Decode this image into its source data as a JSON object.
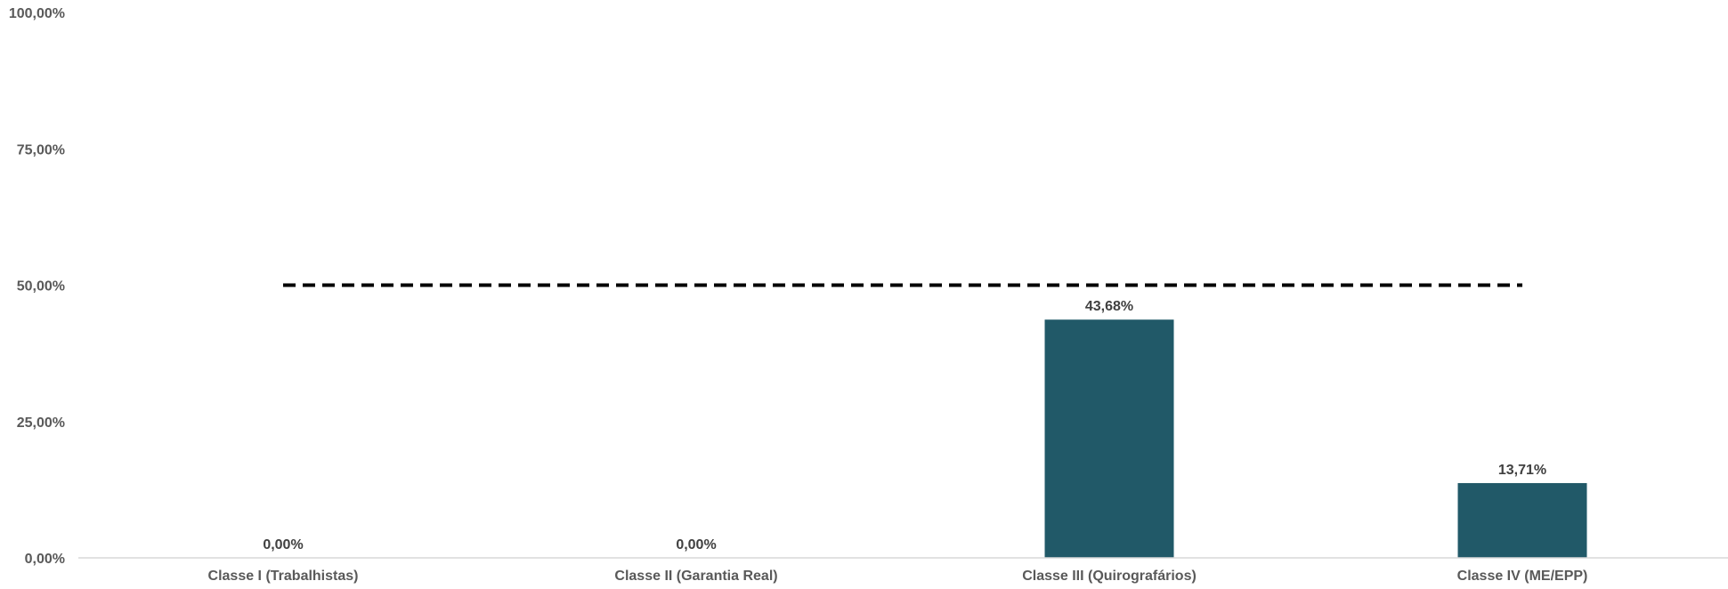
{
  "chart_data": {
    "type": "bar",
    "categories": [
      "Classe I (Trabalhistas)",
      "Classe II (Garantia Real)",
      "Classe III (Quirografários)",
      "Classe IV (ME/EPP)"
    ],
    "values": [
      0.0,
      0.0,
      43.68,
      13.71
    ],
    "value_labels": [
      "0,00%",
      "0,00%",
      "43,68%",
      "13,71%"
    ],
    "ylim": [
      0,
      100
    ],
    "yticks": [
      0,
      25,
      50,
      75,
      100
    ],
    "ytick_labels": [
      "0,00%",
      "25,00%",
      "50,00%",
      "75,00%",
      "100,00%"
    ],
    "reference_line": {
      "value": 50,
      "style": "dashed",
      "color": "#000000"
    },
    "bar_color": "#215968",
    "grid": false,
    "title": "",
    "xlabel": "",
    "ylabel": ""
  }
}
